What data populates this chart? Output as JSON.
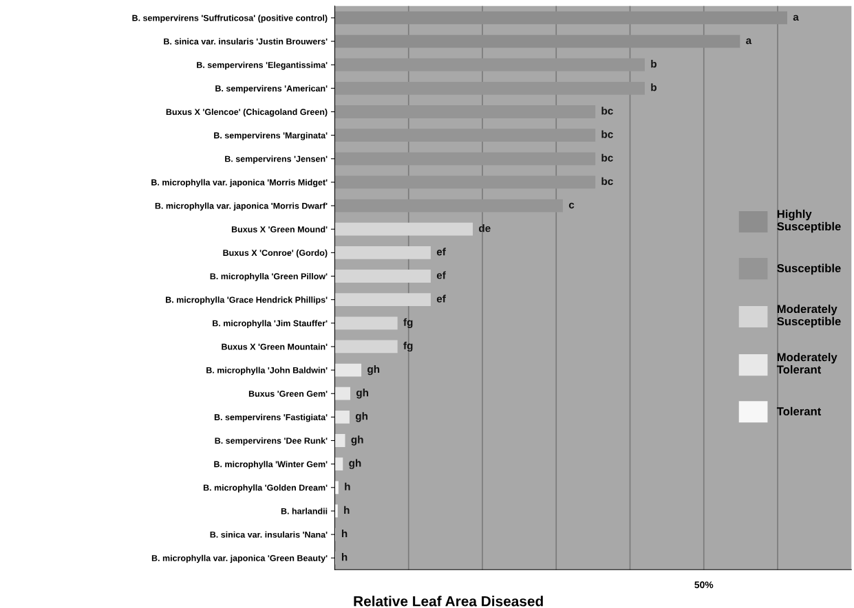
{
  "chart_data": {
    "type": "bar",
    "orientation": "horizontal",
    "xlabel": "Relative Leaf Area Diseased",
    "legend": "right",
    "grid": "x",
    "xlim": [
      0,
      70
    ],
    "xticks": [
      {
        "value": 10,
        "label": null
      },
      {
        "value": 20,
        "label": null
      },
      {
        "value": 30,
        "label": null
      },
      {
        "value": 40,
        "label": null
      },
      {
        "value": 50,
        "label": "50%"
      },
      {
        "value": 60,
        "label": null
      }
    ],
    "categories": [
      "B. sempervirens 'Suffruticosa' (positive control)",
      "B. sinica var. insularis 'Justin Brouwers'",
      "B. sempervirens 'Elegantissima'",
      "B. sempervirens 'American'",
      "Buxus X 'Glencoe' (Chicagoland Green)",
      "B. sempervirens 'Marginata'",
      "B. sempervirens 'Jensen'",
      "B. microphylla var. japonica 'Morris Midget'",
      "B. microphylla var. japonica 'Morris Dwarf'",
      "Buxus X 'Green Mound'",
      "Buxus X 'Conroe' (Gordo)",
      "B. microphylla 'Green Pillow'",
      "B. microphylla 'Grace Hendrick Phillips'",
      "B. microphylla 'Jim Stauffer'",
      "Buxus X 'Green Mountain'",
      "B. microphylla 'John Baldwin'",
      "Buxus 'Green Gem'",
      "B. sempervirens 'Fastigiata'",
      "B. sempervirens 'Dee Runk'",
      "B. microphylla 'Winter Gem'",
      "B. microphylla 'Golden Dream'",
      "B. harlandii",
      "B. sinica var. insularis 'Nana'",
      "B. microphylla var. japonica 'Green Beauty'"
    ],
    "series": [
      {
        "name": "Highly Susceptible",
        "color": "#8e8e8e",
        "values": [
          61.3,
          54.9,
          null,
          null,
          null,
          null,
          null,
          null,
          null,
          null,
          null,
          null,
          null,
          null,
          null,
          null,
          null,
          null,
          null,
          null,
          null,
          null,
          null,
          null
        ],
        "value_labels": [
          "a",
          "a",
          null,
          null,
          null,
          null,
          null,
          null,
          null,
          null,
          null,
          null,
          null,
          null,
          null,
          null,
          null,
          null,
          null,
          null,
          null,
          null,
          null,
          null
        ]
      },
      {
        "name": "Susceptible",
        "color": "#959595",
        "values": [
          null,
          null,
          42.0,
          42.0,
          35.3,
          35.3,
          35.3,
          35.3,
          30.9,
          null,
          null,
          null,
          null,
          null,
          null,
          null,
          null,
          null,
          null,
          null,
          null,
          null,
          null,
          null
        ],
        "value_labels": [
          null,
          null,
          "b",
          "b",
          "bc",
          "bc",
          "bc",
          "bc",
          "c",
          null,
          null,
          null,
          null,
          null,
          null,
          null,
          null,
          null,
          null,
          null,
          null,
          null,
          null,
          null
        ]
      },
      {
        "name": "Moderately Susceptible",
        "color": "#d6d6d6",
        "values": [
          null,
          null,
          null,
          null,
          null,
          null,
          null,
          null,
          null,
          18.7,
          13.0,
          13.0,
          13.0,
          8.5,
          8.5,
          null,
          null,
          null,
          null,
          null,
          null,
          null,
          null,
          null
        ],
        "value_labels": [
          null,
          null,
          null,
          null,
          null,
          null,
          null,
          null,
          null,
          "de",
          "ef",
          "ef",
          "ef",
          "fg",
          "fg",
          null,
          null,
          null,
          null,
          null,
          null,
          null,
          null,
          null
        ]
      },
      {
        "name": "Moderately Tolerant",
        "color": "#e8e8e8",
        "values": [
          null,
          null,
          null,
          null,
          null,
          null,
          null,
          null,
          null,
          null,
          null,
          null,
          null,
          null,
          null,
          3.6,
          2.1,
          2.0,
          1.4,
          1.1,
          null,
          null,
          null,
          null
        ],
        "value_labels": [
          null,
          null,
          null,
          null,
          null,
          null,
          null,
          null,
          null,
          null,
          null,
          null,
          null,
          null,
          null,
          "gh",
          "gh",
          "gh",
          "gh",
          "gh",
          null,
          null,
          null,
          null
        ]
      },
      {
        "name": "Tolerant",
        "color": "#f7f7f7",
        "values": [
          null,
          null,
          null,
          null,
          null,
          null,
          null,
          null,
          null,
          null,
          null,
          null,
          null,
          null,
          null,
          null,
          null,
          null,
          null,
          null,
          0.5,
          0.4,
          0.1,
          0.1
        ],
        "value_labels": [
          null,
          null,
          null,
          null,
          null,
          null,
          null,
          null,
          null,
          null,
          null,
          null,
          null,
          null,
          null,
          null,
          null,
          null,
          null,
          null,
          "h",
          "h",
          "h",
          "h"
        ]
      }
    ]
  }
}
